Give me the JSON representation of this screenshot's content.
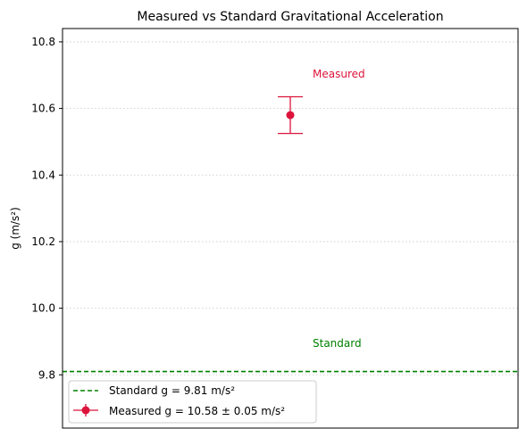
{
  "chart_data": {
    "type": "scatter",
    "title": "Measured vs Standard Gravitational Acceleration",
    "xlabel": "",
    "ylabel": "g (m/s²)",
    "ylim": [
      9.64,
      10.84
    ],
    "yticks": [
      "9.8",
      "10.0",
      "10.2",
      "10.4",
      "10.6",
      "10.8"
    ],
    "ytick_values": [
      9.8,
      10.0,
      10.2,
      10.4,
      10.6,
      10.8
    ],
    "grid": "y-dotted",
    "legend_placement": "lower-left",
    "standard": {
      "value": 9.81,
      "color": "#008000",
      "legend": "Standard g = 9.81 m/s²",
      "annotation": "Standard"
    },
    "measured": {
      "value": 10.58,
      "error": 0.055,
      "color": "#dc143c",
      "legend": "Measured g = 10.58 ± 0.05 m/s²",
      "annotation": "Measured"
    }
  }
}
